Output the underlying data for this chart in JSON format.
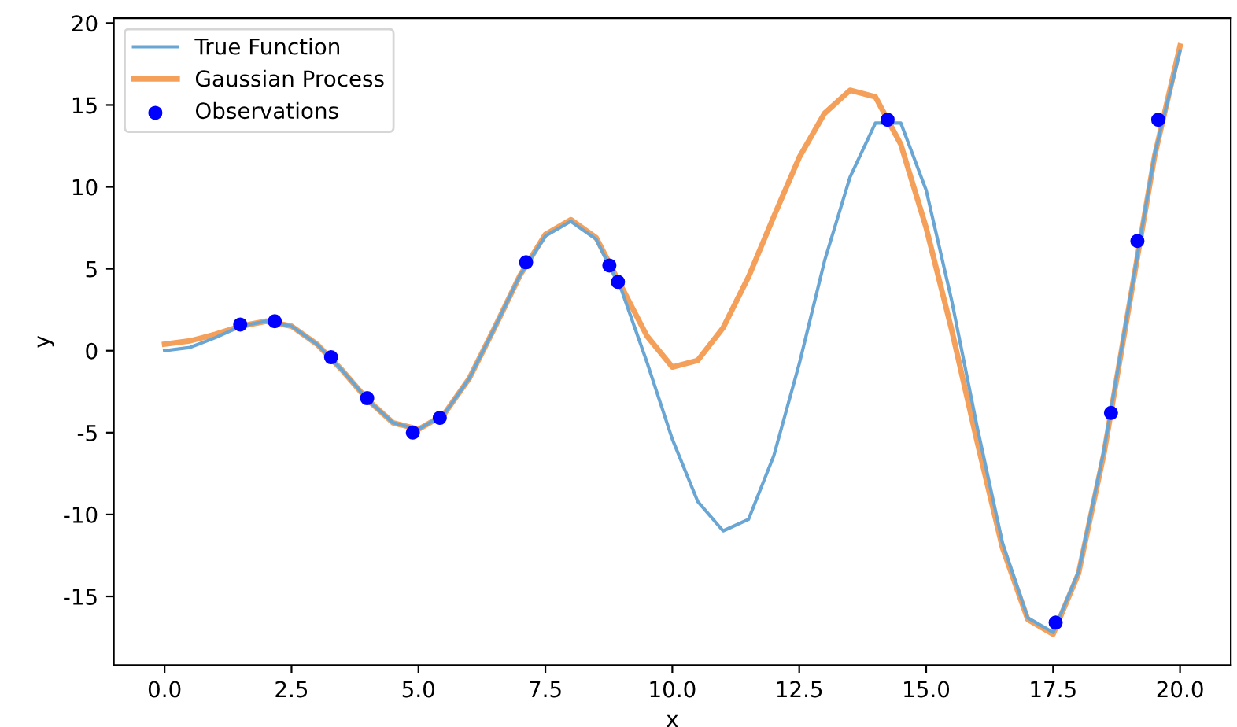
{
  "chart_data": {
    "type": "line",
    "xlabel": "x",
    "ylabel": "y",
    "xlim": [
      -1,
      21
    ],
    "ylim": [
      -19.2,
      20.3
    ],
    "xticks": [
      {
        "value": 0,
        "label": "0.0"
      },
      {
        "value": 2.5,
        "label": "2.5"
      },
      {
        "value": 5,
        "label": "5.0"
      },
      {
        "value": 7.5,
        "label": "7.5"
      },
      {
        "value": 10,
        "label": "10.0"
      },
      {
        "value": 12.5,
        "label": "12.5"
      },
      {
        "value": 15,
        "label": "15.0"
      },
      {
        "value": 17.5,
        "label": "17.5"
      },
      {
        "value": 20,
        "label": "20.0"
      }
    ],
    "yticks": [
      -15,
      -10,
      -5,
      0,
      5,
      10,
      15,
      20
    ],
    "grid": false,
    "legend": "top left",
    "series": [
      {
        "name": "True Function",
        "color": "#6aa6d4",
        "marker": "none",
        "line_style": "solid",
        "x": [
          0,
          0.5,
          1,
          1.5,
          2,
          2.5,
          3,
          3.5,
          4,
          4.5,
          5,
          5.5,
          6,
          6.5,
          7,
          7.5,
          8,
          8.5,
          9,
          9.5,
          10,
          10.5,
          11,
          11.5,
          12,
          12.5,
          13,
          13.5,
          14,
          14.5,
          15,
          15.5,
          16,
          16.5,
          17,
          17.5,
          18,
          18.5,
          19,
          19.5,
          20
        ],
        "values": [
          0,
          0.2,
          0.8,
          1.5,
          1.8,
          1.5,
          0.4,
          -1.2,
          -3.0,
          -4.4,
          -4.8,
          -3.9,
          -1.7,
          1.4,
          4.6,
          7.0,
          7.9,
          6.8,
          3.7,
          -0.7,
          -5.4,
          -9.2,
          -11.0,
          -10.3,
          -6.4,
          -0.8,
          5.5,
          10.6,
          13.9,
          13.9,
          9.8,
          3.1,
          -4.6,
          -11.7,
          -16.3,
          -17.2,
          -13.5,
          -6.1,
          2.9,
          12.0,
          18.3
        ]
      },
      {
        "name": "Gaussian Process",
        "color": "#f5a05a",
        "marker": "none",
        "line_style": "solid",
        "x": [
          0,
          0.5,
          1,
          1.5,
          2,
          2.5,
          3,
          3.5,
          4,
          4.5,
          5,
          5.5,
          6,
          6.5,
          7,
          7.5,
          8,
          8.5,
          9,
          9.5,
          10,
          10.5,
          11,
          11.5,
          12,
          12.5,
          13,
          13.5,
          14,
          14.5,
          15,
          15.5,
          16,
          16.5,
          17,
          17.5,
          18,
          18.5,
          19,
          19.5,
          20
        ],
        "values": [
          0.4,
          0.6,
          1.0,
          1.5,
          1.8,
          1.5,
          0.4,
          -1.2,
          -3.0,
          -4.4,
          -4.8,
          -3.9,
          -1.7,
          1.4,
          4.6,
          7.1,
          8.0,
          6.9,
          3.9,
          0.9,
          -1.0,
          -0.6,
          1.4,
          4.5,
          8.2,
          11.8,
          14.5,
          15.9,
          15.5,
          12.6,
          7.5,
          1.3,
          -5.5,
          -12.0,
          -16.4,
          -17.3,
          -13.6,
          -6.3,
          2.8,
          11.9,
          18.6
        ]
      },
      {
        "name": "Observations",
        "type": "scatter",
        "color": "#0000ff",
        "marker": "circle",
        "x": [
          1.49,
          2.17,
          3.28,
          3.99,
          4.89,
          5.42,
          7.12,
          8.76,
          8.93,
          14.24,
          17.55,
          18.64,
          19.16,
          19.57
        ],
        "values": [
          1.6,
          1.8,
          -0.4,
          -2.9,
          -5.0,
          -4.1,
          5.4,
          5.2,
          4.2,
          14.1,
          -16.6,
          -3.8,
          6.7,
          14.1
        ]
      }
    ]
  }
}
